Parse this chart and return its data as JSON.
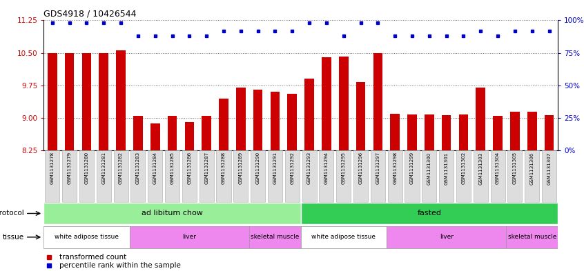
{
  "title": "GDS4918 / 10426544",
  "samples": [
    "GSM1131278",
    "GSM1131279",
    "GSM1131280",
    "GSM1131281",
    "GSM1131282",
    "GSM1131283",
    "GSM1131284",
    "GSM1131285",
    "GSM1131286",
    "GSM1131287",
    "GSM1131288",
    "GSM1131289",
    "GSM1131290",
    "GSM1131291",
    "GSM1131292",
    "GSM1131293",
    "GSM1131294",
    "GSM1131295",
    "GSM1131296",
    "GSM1131297",
    "GSM1131298",
    "GSM1131299",
    "GSM1131300",
    "GSM1131301",
    "GSM1131302",
    "GSM1131303",
    "GSM1131304",
    "GSM1131305",
    "GSM1131306",
    "GSM1131307"
  ],
  "bar_values": [
    10.5,
    10.5,
    10.5,
    10.5,
    10.55,
    9.05,
    8.88,
    9.05,
    8.9,
    9.05,
    9.45,
    9.7,
    9.65,
    9.6,
    9.55,
    9.9,
    10.4,
    10.42,
    9.82,
    10.5,
    9.1,
    9.08,
    9.08,
    9.07,
    9.08,
    9.7,
    9.05,
    9.15,
    9.15,
    9.07
  ],
  "percentile_values": [
    98,
    98,
    98,
    98,
    98,
    88,
    88,
    88,
    88,
    88,
    92,
    92,
    92,
    92,
    92,
    98,
    98,
    88,
    98,
    98,
    88,
    88,
    88,
    88,
    88,
    92,
    88,
    92,
    92,
    92
  ],
  "ylim_left": [
    8.25,
    11.25
  ],
  "ylim_right": [
    0,
    100
  ],
  "yticks_left": [
    8.25,
    9.0,
    9.75,
    10.5,
    11.25
  ],
  "yticks_right": [
    0,
    25,
    50,
    75,
    100
  ],
  "bar_color": "#CC0000",
  "dot_color": "#0000CC",
  "protocol_groups": [
    {
      "label": "ad libitum chow",
      "start": 0,
      "end": 14,
      "color": "#99EE99"
    },
    {
      "label": "fasted",
      "start": 15,
      "end": 29,
      "color": "#33CC55"
    }
  ],
  "tissue_groups": [
    {
      "label": "white adipose tissue",
      "start": 0,
      "end": 4,
      "color": "#FFFFFF"
    },
    {
      "label": "liver",
      "start": 5,
      "end": 11,
      "color": "#EE88EE"
    },
    {
      "label": "skeletal muscle",
      "start": 12,
      "end": 14,
      "color": "#EE88EE"
    },
    {
      "label": "white adipose tissue",
      "start": 15,
      "end": 19,
      "color": "#FFFFFF"
    },
    {
      "label": "liver",
      "start": 20,
      "end": 26,
      "color": "#EE88EE"
    },
    {
      "label": "skeletal muscle",
      "start": 27,
      "end": 29,
      "color": "#EE88EE"
    }
  ],
  "legend_items": [
    {
      "label": "transformed count",
      "color": "#CC0000"
    },
    {
      "label": "percentile rank within the sample",
      "color": "#0000CC"
    }
  ]
}
